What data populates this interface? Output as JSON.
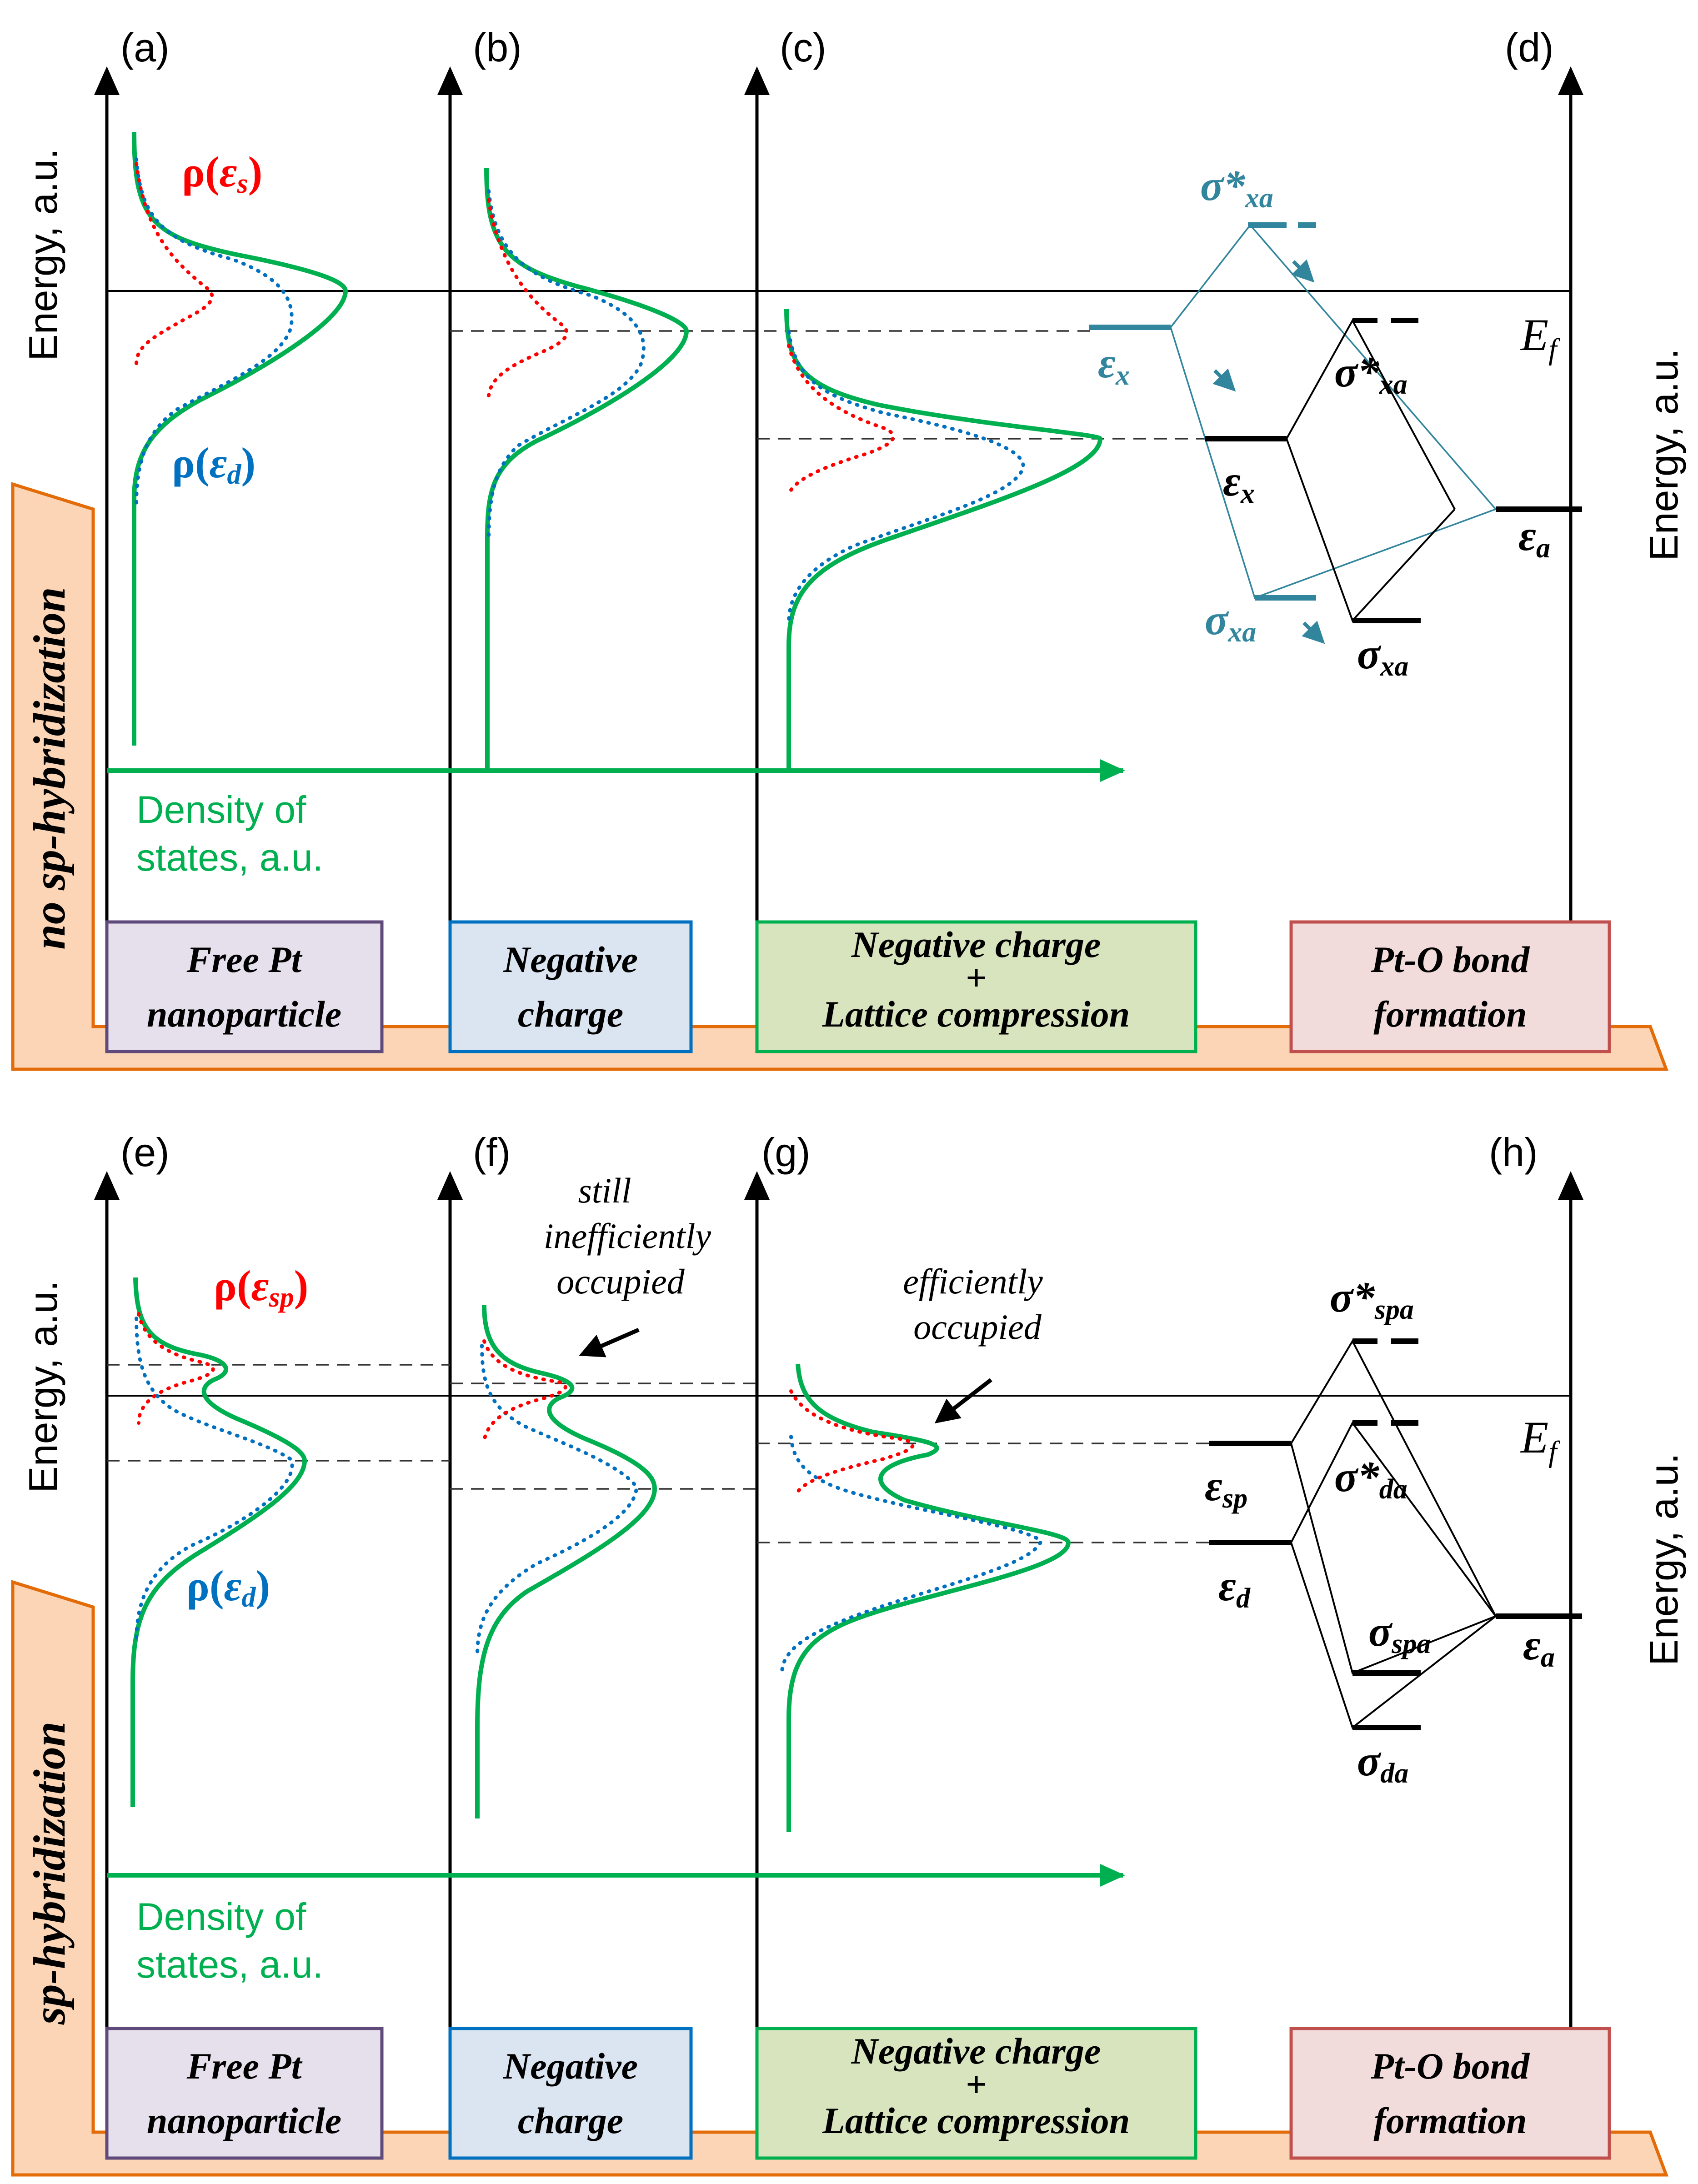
{
  "panel_labels": {
    "a": "(a)",
    "b": "(b)",
    "c": "(c)",
    "d": "(d)",
    "e": "(e)",
    "f": "(f)",
    "g": "(g)",
    "h": "(h)"
  },
  "axis": {
    "energy_left": "Energy, a.u.",
    "energy_right": "Energy, a.u.",
    "dos_line1": "Density of",
    "dos_line2": "states, a.u.",
    "fermi": "E",
    "fermi_sub": "f"
  },
  "side_labels": {
    "top": "no sp-hybridization",
    "bottom": "sp-hybridization"
  },
  "boxes": {
    "free_pt_1": "Free Pt",
    "free_pt_2": "nanoparticle",
    "neg_1": "Negative",
    "neg_2": "charge",
    "neg_lat_1": "Negative charge",
    "plus": "+",
    "neg_lat_2": "Lattice compression",
    "pto_1": "Pt-O bond",
    "pto_2": "formation"
  },
  "dos_labels": {
    "rho": "ρ(",
    "close": ")",
    "eps": "ε",
    "s": "s",
    "d": "d",
    "sp": "sp"
  },
  "annotations": {
    "f_1": "still",
    "f_2": "inefficiently",
    "f_3": "occupied",
    "g_1": "efficiently",
    "g_2": "occupied"
  },
  "levels": {
    "eps": "ε",
    "sigma": "σ",
    "sigma_star": "σ*",
    "x": "x",
    "a": "a",
    "xa": "xa",
    "sp": "sp",
    "d": "d",
    "spa": "spa",
    "da": "da"
  },
  "colors": {
    "green": "#00b050",
    "red": "#ff0000",
    "blue": "#0070c0",
    "teal": "#31859c",
    "orange_fill": "#fbd5b5",
    "orange_edge": "#e36c09",
    "box_purple_fill": "#e6e0ec",
    "box_purple_edge": "#604a7b",
    "box_blue_fill": "#dbe5f1",
    "box_blue_edge": "#0070c0",
    "box_green_fill": "#d7e4bd",
    "box_green_edge": "#00b050",
    "box_red_fill": "#f2dcdb",
    "box_red_edge": "#c0504d"
  }
}
